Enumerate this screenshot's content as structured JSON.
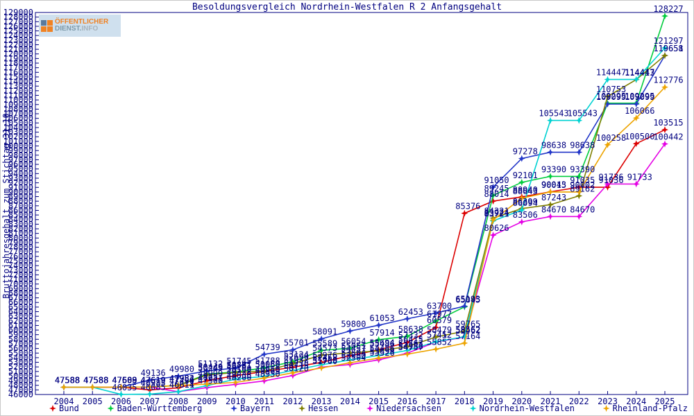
{
  "title": "Besoldungsvergleich Nordrhein-Westfalen R 2 Anfangsgehalt",
  "y_axis_title": "Bruttojahresgehalt zum Stichtag 31.10.",
  "logo": {
    "line1": "ÖFFENTLICHER",
    "line2_strong": "DIENST.",
    "line2_rest": "INFO"
  },
  "colors": {
    "text": "#000080",
    "axis": "#000080",
    "background": "#ffffff",
    "logo_orange": "#f08223",
    "logo_blue": "#5b7a9d"
  },
  "chart_data": {
    "type": "line",
    "x": [
      2004,
      2005,
      2006,
      2007,
      2008,
      2009,
      2010,
      2011,
      2012,
      2013,
      2014,
      2015,
      2016,
      2017,
      2018,
      2019,
      2020,
      2021,
      2022,
      2023,
      2024,
      2025
    ],
    "ylim": [
      46000,
      129000
    ],
    "y_tick_step": 1000,
    "grid": false,
    "legend_position": "bottom",
    "point_labels": true,
    "series": [
      {
        "name": "Bund",
        "color": "#dc0000",
        "values": [
          47588,
          47588,
          47588,
          46985,
          47450,
          48999,
          50100,
          50969,
          51932,
          52976,
          54457,
          55694,
          57332,
          60579,
          85376,
          88014,
          88940,
          90043,
          91035,
          91036,
          100500,
          103515
        ]
      },
      {
        "name": "Baden-Württemberg",
        "color": "#00cc3c",
        "values": [
          47588,
          47588,
          47609,
          47619,
          47984,
          50449,
          50881,
          51788,
          53124,
          55589,
          56054,
          57914,
          58638,
          61977,
          65045,
          89245,
          92101,
          93390,
          93390,
          109295,
          109295,
          128227
        ]
      },
      {
        "name": "Bayern",
        "color": "#2236c8",
        "values": [
          47588,
          47588,
          47609,
          49136,
          49980,
          51132,
          51745,
          54739,
          55701,
          58091,
          59800,
          61053,
          62453,
          63700,
          65193,
          91050,
          97278,
          98638,
          98638,
          109099,
          109099,
          119658
        ]
      },
      {
        "name": "Hessen",
        "color": "#7f7f00",
        "values": [
          47588,
          47588,
          47609,
          47619,
          47952,
          50249,
          50781,
          51080,
          52690,
          54573,
          55051,
          55486,
          56415,
          58479,
          59765,
          84321,
          86399,
          87243,
          89162,
          110753,
          114413,
          119651
        ]
      },
      {
        "name": "Niedersachsen",
        "color": "#e400e4",
        "values": [
          47588,
          47588,
          47609,
          47619,
          46611,
          47500,
          48200,
          48950,
          50120,
          51950,
          52504,
          53526,
          54986,
          57412,
          58462,
          80626,
          83506,
          84670,
          84670,
          91736,
          91733,
          100442
        ]
      },
      {
        "name": "Nordrhein-Westfalen",
        "color": "#00d2d2",
        "values": [
          47588,
          47588,
          46035,
          46085,
          46614,
          47931,
          49328,
          49950,
          51238,
          52458,
          53504,
          54486,
          55563,
          57452,
          58562,
          83721,
          86094,
          105543,
          105543,
          114447,
          114447,
          121297
        ]
      },
      {
        "name": "Rheinland-Pfalz",
        "color": "#eda400",
        "values": [
          47588,
          47588,
          47609,
          47619,
          47984,
          48257,
          48636,
          49569,
          50715,
          51760,
          52900,
          53899,
          54757,
          55852,
          57164,
          83924,
          88643,
          90015,
          90002,
          100258,
          106066,
          112776
        ]
      }
    ]
  }
}
